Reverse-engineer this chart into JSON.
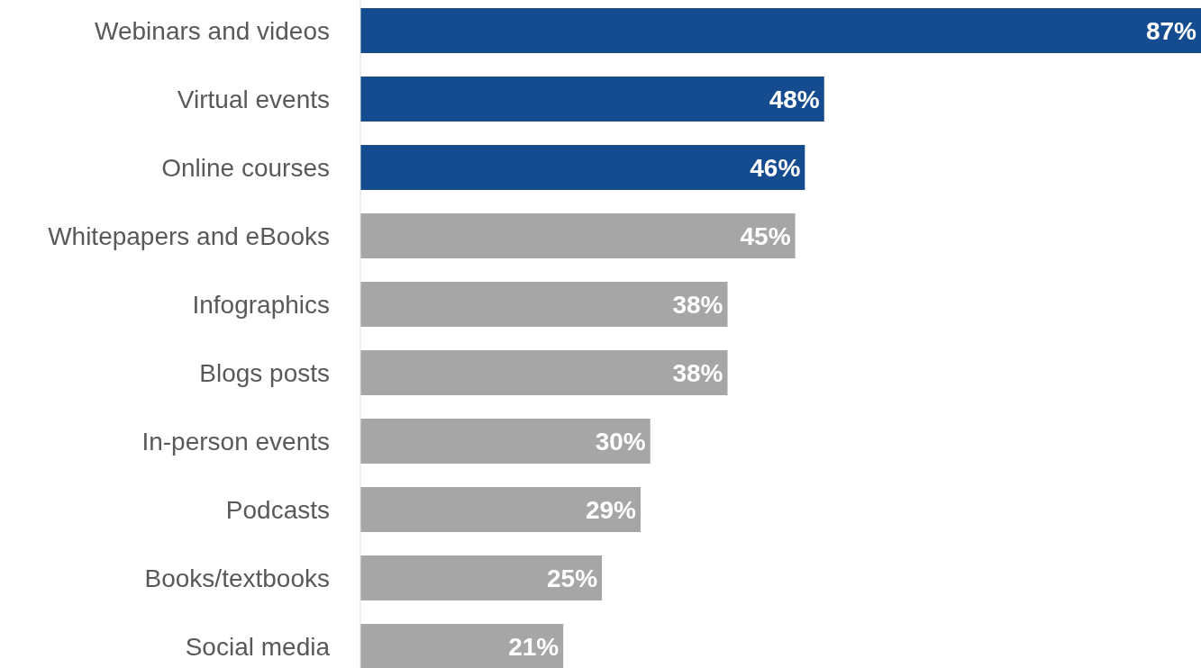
{
  "chart_data": {
    "type": "bar",
    "orientation": "horizontal",
    "categories": [
      "Webinars and videos",
      "Virtual events",
      "Online courses",
      "Whitepapers and eBooks",
      "Infographics",
      "Blogs posts",
      "In-person events",
      "Podcasts",
      "Books/textbooks",
      "Social media"
    ],
    "values": [
      87,
      48,
      46,
      45,
      38,
      38,
      30,
      29,
      25,
      21
    ],
    "colors": [
      "#154c8f",
      "#154c8f",
      "#154c8f",
      "#a6a6a6",
      "#a6a6a6",
      "#a6a6a6",
      "#a6a6a6",
      "#a6a6a6",
      "#a6a6a6",
      "#a6a6a6"
    ],
    "value_labels": [
      "87%",
      "48%",
      "46%",
      "45%",
      "38%",
      "38%",
      "30%",
      "29%",
      "25%",
      "21%"
    ],
    "grid": false,
    "legend": false
  }
}
